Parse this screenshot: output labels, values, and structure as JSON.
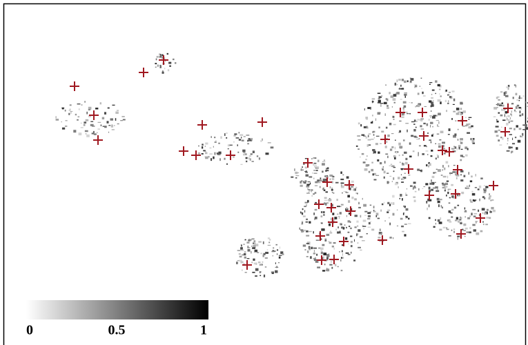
{
  "colorbar": {
    "ticks": [
      0,
      0.5,
      1
    ]
  }
}
